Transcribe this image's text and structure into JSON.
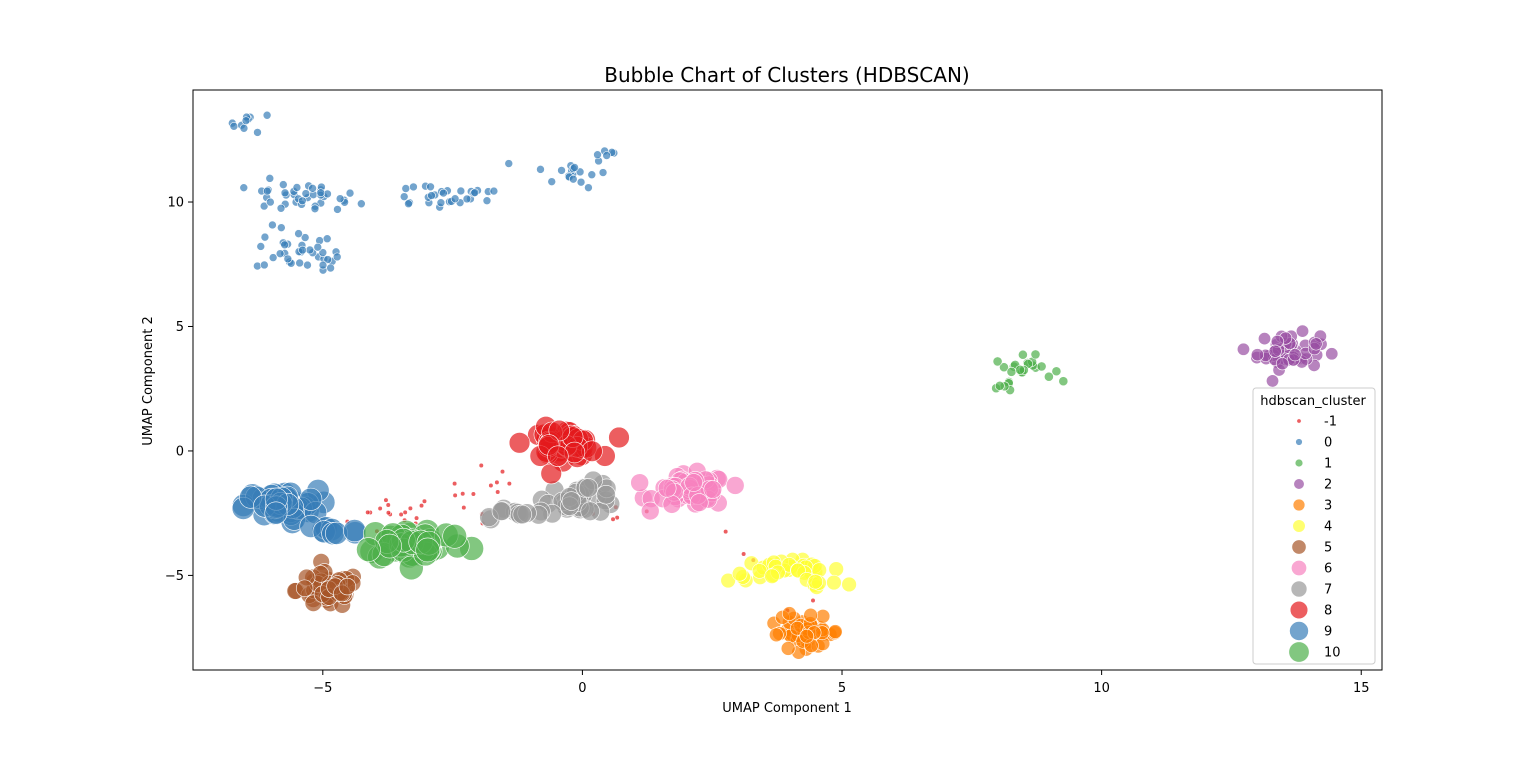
{
  "chart_data": {
    "type": "scatter",
    "title": "Bubble Chart of Clusters (HDBSCAN)",
    "xlabel": "UMAP Component 1",
    "ylabel": "UMAP Component 2",
    "xlim": [
      -7.5,
      15.4
    ],
    "ylim": [
      -8.8,
      14.5
    ],
    "xticks": [
      -5,
      0,
      5,
      10,
      15
    ],
    "yticks": [
      -5,
      0,
      5,
      10
    ],
    "xtick_labels": [
      "−5",
      "0",
      "5",
      "10",
      "15"
    ],
    "ytick_labels": [
      "−5",
      "0",
      "5",
      "10"
    ],
    "grid": false,
    "legend": {
      "title": "hdbscan_cluster",
      "position": "right"
    },
    "series": [
      {
        "name": "-1",
        "color": "#e41a1c",
        "size": 2.3,
        "clusters": [
          {
            "cx": -3.6,
            "cy": -2.6,
            "sx": 0.45,
            "sy": 0.45,
            "n": 18
          },
          {
            "cx": -1.8,
            "cy": -1.6,
            "sx": 0.4,
            "sy": 0.5,
            "n": 14
          },
          {
            "cx": 1.0,
            "cy": -2.5,
            "sx": 0.4,
            "sy": 0.3,
            "n": 5
          },
          {
            "cx": 3.0,
            "cy": -4.0,
            "sx": 0.2,
            "sy": 0.5,
            "n": 3
          },
          {
            "cx": 4.0,
            "cy": -6.3,
            "sx": 0.3,
            "sy": 0.2,
            "n": 2
          }
        ]
      },
      {
        "name": "0",
        "color": "#377eb8",
        "size": 4,
        "clusters": [
          {
            "cx": -6.4,
            "cy": 13.2,
            "sx": 0.2,
            "sy": 0.2,
            "n": 10
          },
          {
            "cx": -5.8,
            "cy": 10.2,
            "sx": 0.35,
            "sy": 0.3,
            "n": 22
          },
          {
            "cx": -5.0,
            "cy": 10.1,
            "sx": 0.35,
            "sy": 0.3,
            "n": 18
          },
          {
            "cx": -5.5,
            "cy": 8.1,
            "sx": 0.4,
            "sy": 0.45,
            "n": 30
          },
          {
            "cx": -5.1,
            "cy": 7.5,
            "sx": 0.25,
            "sy": 0.2,
            "n": 8
          },
          {
            "cx": -2.8,
            "cy": 10.3,
            "sx": 0.6,
            "sy": 0.3,
            "n": 24
          },
          {
            "cx": -1.8,
            "cy": 10.3,
            "sx": 0.3,
            "sy": 0.2,
            "n": 6
          },
          {
            "cx": -0.2,
            "cy": 11.2,
            "sx": 0.35,
            "sy": 0.3,
            "n": 18
          },
          {
            "cx": 0.5,
            "cy": 12.0,
            "sx": 0.15,
            "sy": 0.1,
            "n": 5
          }
        ]
      },
      {
        "name": "1",
        "color": "#4daf4a",
        "size": 4.6,
        "clusters": [
          {
            "cx": 8.5,
            "cy": 3.3,
            "sx": 0.28,
            "sy": 0.25,
            "n": 22
          },
          {
            "cx": 8.15,
            "cy": 2.6,
            "sx": 0.12,
            "sy": 0.1,
            "n": 4
          }
        ]
      },
      {
        "name": "2",
        "color": "#984ea3",
        "size": 6.2,
        "clusters": [
          {
            "cx": 13.6,
            "cy": 4.0,
            "sx": 0.3,
            "sy": 0.35,
            "n": 55
          }
        ]
      },
      {
        "name": "3",
        "color": "#ff7f00",
        "size": 7,
        "clusters": [
          {
            "cx": 4.3,
            "cy": -7.3,
            "sx": 0.35,
            "sy": 0.3,
            "n": 45
          },
          {
            "cx": 3.8,
            "cy": -6.5,
            "sx": 0.1,
            "sy": 0.1,
            "n": 2
          }
        ]
      },
      {
        "name": "4",
        "color": "#ffff33",
        "size": 7.4,
        "clusters": [
          {
            "cx": 3.9,
            "cy": -4.8,
            "sx": 0.55,
            "sy": 0.22,
            "n": 35
          },
          {
            "cx": 4.6,
            "cy": -5.3,
            "sx": 0.2,
            "sy": 0.15,
            "n": 6
          }
        ]
      },
      {
        "name": "5",
        "color": "#a65628",
        "size": 8.4,
        "clusters": [
          {
            "cx": -4.9,
            "cy": -5.6,
            "sx": 0.3,
            "sy": 0.35,
            "n": 60
          }
        ]
      },
      {
        "name": "6",
        "color": "#f781bf",
        "size": 9,
        "clusters": [
          {
            "cx": 2.1,
            "cy": -1.6,
            "sx": 0.35,
            "sy": 0.32,
            "n": 55
          }
        ]
      },
      {
        "name": "7",
        "color": "#999999",
        "size": 9.4,
        "clusters": [
          {
            "cx": 0.0,
            "cy": -1.9,
            "sx": 0.35,
            "sy": 0.3,
            "n": 35
          },
          {
            "cx": -1.3,
            "cy": -2.5,
            "sx": 0.35,
            "sy": 0.12,
            "n": 12
          }
        ]
      },
      {
        "name": "8",
        "color": "#e41a1c",
        "size": 10.4,
        "clusters": [
          {
            "cx": -0.4,
            "cy": 0.3,
            "sx": 0.35,
            "sy": 0.3,
            "n": 45
          }
        ]
      },
      {
        "name": "9",
        "color": "#377eb8",
        "size": 11.2,
        "clusters": [
          {
            "cx": -5.8,
            "cy": -2.2,
            "sx": 0.35,
            "sy": 0.3,
            "n": 55
          },
          {
            "cx": -4.9,
            "cy": -3.2,
            "sx": 0.3,
            "sy": 0.2,
            "n": 10
          }
        ]
      },
      {
        "name": "10",
        "color": "#4daf4a",
        "size": 12,
        "clusters": [
          {
            "cx": -3.2,
            "cy": -3.7,
            "sx": 0.5,
            "sy": 0.35,
            "n": 45
          },
          {
            "cx": -4.0,
            "cy": -3.8,
            "sx": 0.1,
            "sy": 0.1,
            "n": 1
          }
        ]
      }
    ]
  }
}
